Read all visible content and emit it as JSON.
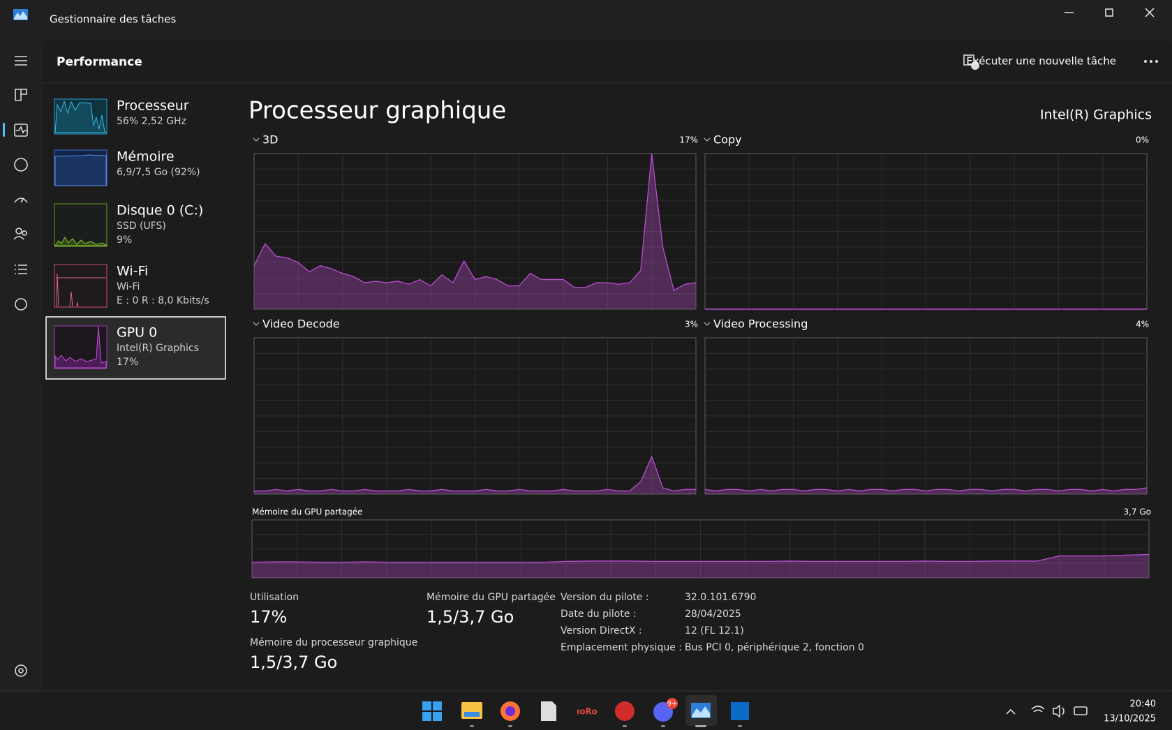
{
  "window": {
    "title": "Gestionnaire des tâches",
    "section": "Performance",
    "new_task": "Exécuter une nouvelle tâche"
  },
  "sidebar": [
    {
      "name": "Processeur",
      "line1": "56% 2,52 GHz"
    },
    {
      "name": "Mémoire",
      "line1": "6,9/7,5 Go (92%)"
    },
    {
      "name": "Disque 0 (C:)",
      "line1": "SSD (UFS)",
      "line2": "9%"
    },
    {
      "name": "Wi-Fi",
      "line1": "Wi-Fi",
      "line2": "E : 0 R : 8,0 Kbits/s"
    },
    {
      "name": "GPU 0",
      "line1": "Intel(R) Graphics",
      "line2": "17%"
    }
  ],
  "main": {
    "title": "Processeur graphique",
    "device": "Intel(R) Graphics"
  },
  "chart_data": [
    {
      "type": "area",
      "title": "3D",
      "corner_label": "17%",
      "ylim": [
        0,
        100
      ],
      "color": "#b44cc8",
      "values": [
        28,
        42,
        34,
        33,
        30,
        24,
        28,
        26,
        23,
        21,
        17,
        18,
        17,
        18,
        16,
        19,
        15,
        22,
        17,
        31,
        19,
        21,
        19,
        15,
        15,
        23,
        19,
        19,
        19,
        14,
        14,
        17,
        17,
        16,
        17,
        25,
        100,
        40,
        12,
        16,
        17
      ]
    },
    {
      "type": "area",
      "title": "Copy",
      "corner_label": "0%",
      "ylim": [
        0,
        100
      ],
      "color": "#b44cc8",
      "values": [
        0,
        0,
        0,
        0,
        0,
        0,
        0,
        0,
        0,
        0,
        0,
        0,
        0,
        0,
        0,
        0,
        0,
        0,
        0,
        0,
        0,
        0,
        0,
        0,
        0,
        0,
        0,
        0,
        0,
        0,
        0,
        0,
        0,
        0,
        0,
        0,
        0,
        0,
        0,
        0,
        0
      ]
    },
    {
      "type": "area",
      "title": "Video Decode",
      "corner_label": "3%",
      "ylim": [
        0,
        100
      ],
      "color": "#b44cc8",
      "values": [
        2,
        2,
        3,
        2,
        3,
        2,
        2,
        3,
        2,
        2,
        3,
        2,
        2,
        2,
        3,
        2,
        2,
        3,
        2,
        2,
        2,
        3,
        2,
        2,
        3,
        2,
        2,
        2,
        3,
        2,
        2,
        2,
        3,
        2,
        2,
        8,
        24,
        4,
        2,
        3,
        3
      ]
    },
    {
      "type": "area",
      "title": "Video Processing",
      "corner_label": "4%",
      "ylim": [
        0,
        100
      ],
      "color": "#b44cc8",
      "values": [
        3,
        2,
        3,
        3,
        2,
        3,
        2,
        3,
        3,
        2,
        3,
        3,
        2,
        3,
        2,
        3,
        3,
        2,
        3,
        3,
        2,
        3,
        3,
        2,
        3,
        3,
        2,
        3,
        3,
        2,
        3,
        3,
        2,
        3,
        3,
        2,
        3,
        2,
        3,
        3,
        4
      ]
    },
    {
      "type": "area",
      "title": "Mémoire du GPU partagée",
      "corner_label": "3,7 Go",
      "ylim": [
        0,
        3.7
      ],
      "color": "#b44cc8",
      "values": [
        1.0,
        1.02,
        1.02,
        1.0,
        1.0,
        1.02,
        1.0,
        1.0,
        1.0,
        1.0,
        1.0,
        1.0,
        1.0,
        1.0,
        1.05,
        1.07,
        1.07,
        1.07,
        1.05,
        1.05,
        1.05,
        1.05,
        1.05,
        1.05,
        1.07,
        1.05,
        1.05,
        1.05,
        1.05,
        1.05,
        1.07,
        1.05,
        1.05,
        1.07,
        1.07,
        1.07,
        1.4,
        1.4,
        1.4,
        1.45,
        1.5
      ]
    }
  ],
  "stats": {
    "utilisation": {
      "label": "Utilisation",
      "value": "17%"
    },
    "shared": {
      "label": "Mémoire du GPU partagée",
      "value": "1,5/3,7 Go"
    },
    "dedicated": {
      "label": "Mémoire du processeur graphique",
      "value": "1,5/3,7 Go"
    }
  },
  "driver": [
    {
      "label": "Version du pilote :",
      "value": "32.0.101.6790"
    },
    {
      "label": "Date du pilote :",
      "value": "28/04/2025"
    },
    {
      "label": "Version DirectX :",
      "value": "12 (FL 12.1)"
    },
    {
      "label": "Emplacement physique :",
      "value": "Bus PCI 0, périphérique 2, fonction 0"
    }
  ],
  "taskbar": {
    "badge": "9+",
    "time": "20:40",
    "date": "13/10/2025"
  }
}
